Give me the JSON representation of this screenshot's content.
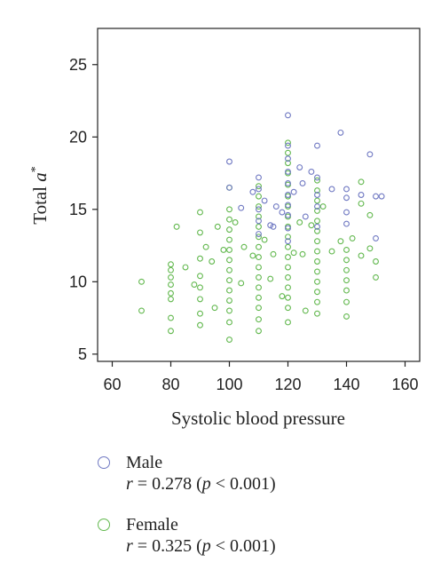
{
  "colors": {
    "male": "#6f78c2",
    "female": "#62b84e",
    "axis": "#222222"
  },
  "chart_data": {
    "type": "scatter",
    "xlabel": "Systolic blood pressure",
    "ylabel_prefix": "Total ",
    "ylabel_var": "a",
    "ylabel_sup": "*",
    "xlim": [
      55,
      165
    ],
    "ylim": [
      4.5,
      27.5
    ],
    "xticks": [
      60,
      80,
      100,
      120,
      140,
      160
    ],
    "yticks": [
      5,
      10,
      15,
      20,
      25
    ],
    "legend_position": "bottom",
    "grid": false,
    "series": [
      {
        "key": "male",
        "name": "Male",
        "stat": "r = 0.278 (p < 0.001)",
        "stat_r": "r",
        "stat_eq": " = 0.278 (",
        "stat_p": "p",
        "stat_tail": " < 0.001)",
        "points": [
          [
            100,
            18.3
          ],
          [
            100,
            16.5
          ],
          [
            104,
            15.1
          ],
          [
            108,
            16.2
          ],
          [
            110,
            17.2
          ],
          [
            110,
            16.4
          ],
          [
            110,
            15.0
          ],
          [
            110,
            14.2
          ],
          [
            110,
            13.3
          ],
          [
            112,
            15.6
          ],
          [
            114,
            13.9
          ],
          [
            115,
            13.8
          ],
          [
            116,
            15.2
          ],
          [
            118,
            14.8
          ],
          [
            120,
            21.5
          ],
          [
            120,
            19.4
          ],
          [
            120,
            18.5
          ],
          [
            120,
            17.6
          ],
          [
            120,
            16.8
          ],
          [
            120,
            16.0
          ],
          [
            120,
            15.3
          ],
          [
            120,
            14.6
          ],
          [
            120,
            13.7
          ],
          [
            120,
            12.8
          ],
          [
            122,
            16.2
          ],
          [
            124,
            17.9
          ],
          [
            125,
            16.8
          ],
          [
            126,
            14.5
          ],
          [
            128,
            17.6
          ],
          [
            130,
            19.4
          ],
          [
            130,
            17.2
          ],
          [
            130,
            16.0
          ],
          [
            130,
            15.2
          ],
          [
            130,
            13.8
          ],
          [
            135,
            16.4
          ],
          [
            138,
            20.3
          ],
          [
            140,
            16.4
          ],
          [
            140,
            15.8
          ],
          [
            140,
            14.8
          ],
          [
            140,
            14.0
          ],
          [
            145,
            16.0
          ],
          [
            148,
            18.8
          ],
          [
            150,
            15.9
          ],
          [
            150,
            13.0
          ],
          [
            152,
            15.9
          ]
        ]
      },
      {
        "key": "female",
        "name": "Female",
        "stat": "r = 0.325 (p < 0.001)",
        "stat_r": "r",
        "stat_eq": " = 0.325 (",
        "stat_p": "p",
        "stat_tail": " < 0.001)",
        "points": [
          [
            70,
            10.0
          ],
          [
            70,
            8.0
          ],
          [
            80,
            11.2
          ],
          [
            80,
            10.8
          ],
          [
            80,
            10.3
          ],
          [
            80,
            9.8
          ],
          [
            80,
            9.2
          ],
          [
            80,
            8.8
          ],
          [
            80,
            7.5
          ],
          [
            80,
            6.6
          ],
          [
            82,
            13.8
          ],
          [
            85,
            11.0
          ],
          [
            88,
            9.8
          ],
          [
            90,
            14.8
          ],
          [
            90,
            13.4
          ],
          [
            90,
            11.6
          ],
          [
            90,
            10.4
          ],
          [
            90,
            9.6
          ],
          [
            90,
            8.8
          ],
          [
            90,
            7.8
          ],
          [
            90,
            7.0
          ],
          [
            92,
            12.4
          ],
          [
            94,
            11.4
          ],
          [
            95,
            8.2
          ],
          [
            96,
            13.8
          ],
          [
            98,
            12.2
          ],
          [
            100,
            16.5
          ],
          [
            100,
            15.0
          ],
          [
            100,
            14.3
          ],
          [
            100,
            13.6
          ],
          [
            100,
            12.9
          ],
          [
            100,
            12.2
          ],
          [
            100,
            11.5
          ],
          [
            100,
            10.8
          ],
          [
            100,
            10.1
          ],
          [
            100,
            9.4
          ],
          [
            100,
            8.7
          ],
          [
            100,
            8.0
          ],
          [
            100,
            7.2
          ],
          [
            100,
            6.0
          ],
          [
            102,
            14.1
          ],
          [
            104,
            9.9
          ],
          [
            105,
            12.4
          ],
          [
            108,
            11.8
          ],
          [
            110,
            16.6
          ],
          [
            110,
            15.9
          ],
          [
            110,
            15.2
          ],
          [
            110,
            14.5
          ],
          [
            110,
            13.8
          ],
          [
            110,
            13.1
          ],
          [
            110,
            12.4
          ],
          [
            110,
            11.7
          ],
          [
            110,
            11.0
          ],
          [
            110,
            10.3
          ],
          [
            110,
            9.6
          ],
          [
            110,
            8.9
          ],
          [
            110,
            8.2
          ],
          [
            110,
            7.4
          ],
          [
            110,
            6.6
          ],
          [
            112,
            12.9
          ],
          [
            114,
            10.2
          ],
          [
            115,
            11.9
          ],
          [
            118,
            9.0
          ],
          [
            120,
            19.6
          ],
          [
            120,
            18.9
          ],
          [
            120,
            18.2
          ],
          [
            120,
            17.5
          ],
          [
            120,
            16.7
          ],
          [
            120,
            15.9
          ],
          [
            120,
            15.2
          ],
          [
            120,
            14.5
          ],
          [
            120,
            13.8
          ],
          [
            120,
            13.1
          ],
          [
            120,
            12.4
          ],
          [
            120,
            11.7
          ],
          [
            120,
            11.0
          ],
          [
            120,
            10.3
          ],
          [
            120,
            9.6
          ],
          [
            120,
            8.9
          ],
          [
            120,
            8.2
          ],
          [
            120,
            7.2
          ],
          [
            122,
            12.0
          ],
          [
            124,
            14.1
          ],
          [
            125,
            11.9
          ],
          [
            126,
            8.0
          ],
          [
            128,
            13.9
          ],
          [
            130,
            17.0
          ],
          [
            130,
            16.3
          ],
          [
            130,
            15.6
          ],
          [
            130,
            14.9
          ],
          [
            130,
            14.2
          ],
          [
            130,
            13.5
          ],
          [
            130,
            12.8
          ],
          [
            130,
            12.1
          ],
          [
            130,
            11.4
          ],
          [
            130,
            10.7
          ],
          [
            130,
            10.0
          ],
          [
            130,
            9.3
          ],
          [
            130,
            8.6
          ],
          [
            130,
            7.8
          ],
          [
            132,
            15.2
          ],
          [
            135,
            12.1
          ],
          [
            138,
            12.8
          ],
          [
            140,
            12.2
          ],
          [
            140,
            11.5
          ],
          [
            140,
            10.8
          ],
          [
            140,
            10.1
          ],
          [
            140,
            9.4
          ],
          [
            140,
            8.6
          ],
          [
            140,
            7.6
          ],
          [
            142,
            13.0
          ],
          [
            145,
            16.9
          ],
          [
            145,
            15.4
          ],
          [
            145,
            11.8
          ],
          [
            148,
            14.6
          ],
          [
            148,
            12.3
          ],
          [
            150,
            11.4
          ],
          [
            150,
            10.3
          ]
        ]
      }
    ]
  }
}
